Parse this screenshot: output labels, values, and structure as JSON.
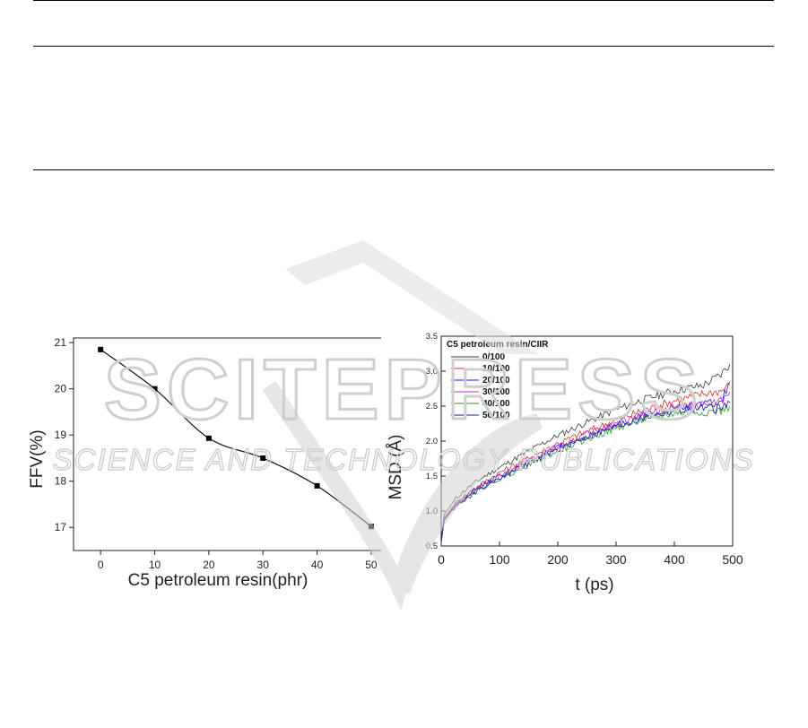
{
  "watermark": {
    "line1": "SCITEPRESS",
    "line2": "SCIENCE AND TECHNOLOGY PUBLICATIONS",
    "color": "#c8c8c8"
  },
  "chart_data": [
    {
      "type": "line",
      "xlabel": "C5 petroleum resin(phr)",
      "ylabel": "FFV(%)",
      "xlim": [
        -5,
        52
      ],
      "ylim": [
        16.5,
        21.1
      ],
      "xticks": [
        0,
        10,
        20,
        30,
        40,
        50
      ],
      "yticks": [
        17,
        18,
        19,
        20,
        21
      ],
      "x": [
        0,
        10,
        20,
        30,
        40,
        50
      ],
      "y": [
        20.85,
        20.0,
        18.93,
        18.5,
        17.9,
        17.02
      ],
      "marker": "square",
      "smooth": true,
      "grid": false
    },
    {
      "type": "line",
      "xlabel": "t (ps)",
      "ylabel": "MSD (Å)",
      "xlim": [
        0,
        500
      ],
      "ylim": [
        0.5,
        3.5
      ],
      "xticks": [
        0,
        100,
        200,
        300,
        400,
        500
      ],
      "yticks": [
        0.5,
        1.0,
        1.5,
        2.0,
        2.5,
        3.0,
        3.5
      ],
      "legend_title": "C5 petroleum resin/CIIR",
      "legend_position": "top-left",
      "grid": false,
      "series": [
        {
          "name": "0/100",
          "color": "#3a3a3a",
          "points": [
            [
              0,
              0.55
            ],
            [
              5,
              0.95
            ],
            [
              25,
              1.18
            ],
            [
              50,
              1.36
            ],
            [
              75,
              1.5
            ],
            [
              100,
              1.62
            ],
            [
              150,
              1.86
            ],
            [
              200,
              2.08
            ],
            [
              250,
              2.27
            ],
            [
              300,
              2.45
            ],
            [
              350,
              2.6
            ],
            [
              400,
              2.72
            ],
            [
              450,
              2.8
            ],
            [
              480,
              2.95
            ],
            [
              495,
              3.1
            ]
          ]
        },
        {
          "name": "10/100",
          "color": "#d03030",
          "points": [
            [
              0,
              0.55
            ],
            [
              5,
              0.9
            ],
            [
              25,
              1.12
            ],
            [
              50,
              1.28
            ],
            [
              75,
              1.42
            ],
            [
              100,
              1.55
            ],
            [
              150,
              1.76
            ],
            [
              200,
              1.97
            ],
            [
              250,
              2.14
            ],
            [
              300,
              2.3
            ],
            [
              350,
              2.45
            ],
            [
              400,
              2.58
            ],
            [
              450,
              2.68
            ],
            [
              480,
              2.72
            ],
            [
              495,
              2.8
            ]
          ]
        },
        {
          "name": "20/100",
          "color": "#1a1ad6",
          "points": [
            [
              0,
              0.55
            ],
            [
              5,
              0.88
            ],
            [
              25,
              1.1
            ],
            [
              50,
              1.26
            ],
            [
              75,
              1.39
            ],
            [
              100,
              1.5
            ],
            [
              150,
              1.7
            ],
            [
              200,
              1.9
            ],
            [
              250,
              2.07
            ],
            [
              300,
              2.22
            ],
            [
              350,
              2.38
            ],
            [
              400,
              2.47
            ],
            [
              450,
              2.52
            ],
            [
              480,
              2.55
            ],
            [
              495,
              2.85
            ]
          ]
        },
        {
          "name": "30/100",
          "color": "#d020d0",
          "points": [
            [
              0,
              0.55
            ],
            [
              5,
              0.88
            ],
            [
              25,
              1.1
            ],
            [
              50,
              1.25
            ],
            [
              75,
              1.38
            ],
            [
              100,
              1.5
            ],
            [
              150,
              1.72
            ],
            [
              200,
              1.92
            ],
            [
              250,
              2.1
            ],
            [
              300,
              2.25
            ],
            [
              350,
              2.38
            ],
            [
              400,
              2.48
            ],
            [
              450,
              2.52
            ],
            [
              480,
              2.58
            ],
            [
              495,
              2.7
            ]
          ]
        },
        {
          "name": "40/100",
          "color": "#2e9a2e",
          "points": [
            [
              0,
              0.55
            ],
            [
              5,
              0.87
            ],
            [
              25,
              1.08
            ],
            [
              50,
              1.23
            ],
            [
              75,
              1.36
            ],
            [
              100,
              1.46
            ],
            [
              150,
              1.66
            ],
            [
              200,
              1.86
            ],
            [
              250,
              2.03
            ],
            [
              300,
              2.18
            ],
            [
              350,
              2.32
            ],
            [
              400,
              2.4
            ],
            [
              450,
              2.42
            ],
            [
              480,
              2.43
            ],
            [
              495,
              2.5
            ]
          ]
        },
        {
          "name": "50/100",
          "color": "#1c1c8a",
          "points": [
            [
              0,
              0.55
            ],
            [
              5,
              0.87
            ],
            [
              25,
              1.08
            ],
            [
              50,
              1.22
            ],
            [
              75,
              1.35
            ],
            [
              100,
              1.47
            ],
            [
              150,
              1.68
            ],
            [
              200,
              1.88
            ],
            [
              250,
              2.06
            ],
            [
              300,
              2.21
            ],
            [
              350,
              2.34
            ],
            [
              400,
              2.44
            ],
            [
              450,
              2.47
            ],
            [
              480,
              2.46
            ],
            [
              495,
              2.55
            ]
          ]
        }
      ]
    }
  ]
}
